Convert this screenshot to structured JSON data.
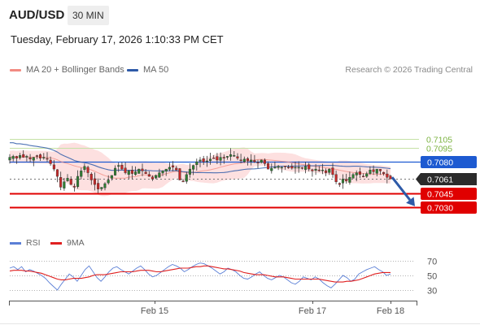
{
  "header": {
    "pair": "AUD/USD",
    "timeframe": "30 MIN"
  },
  "timestamp": "Tuesday, February 17, 2026 1:10:33 PM CET",
  "legend": {
    "ma20": {
      "label": "MA 20 + Bollinger Bands",
      "color": "#f28b82"
    },
    "ma50": {
      "label": "MA 50",
      "color": "#2e5aa8"
    }
  },
  "credit": "Research © 2026 Trading Central",
  "rsi_legend": {
    "rsi": {
      "label": "RSI",
      "color": "#5b7fd6"
    },
    "ma9": {
      "label": "9MA",
      "color": "#e02020"
    }
  },
  "colors": {
    "bull": "#2e7d32",
    "bear": "#c62828",
    "band": "#fde0e0",
    "support": "#e00000",
    "resistance": "#1d5ad1",
    "target": "#7cb342"
  },
  "chart_data": [
    {
      "type": "candlestick",
      "title": "AUD/USD",
      "x_ticks": [
        "Feb 15",
        "Feb 17",
        "Feb 18"
      ],
      "ylim": [
        0.7022,
        0.7132
      ],
      "levels": [
        {
          "value": 0.7105,
          "label": "0.7105",
          "kind": "target"
        },
        {
          "value": 0.7095,
          "label": "0.7095",
          "kind": "target"
        },
        {
          "value": 0.708,
          "label": "0.7080",
          "kind": "resistance"
        },
        {
          "value": 0.7061,
          "label": "0.7061",
          "kind": "last"
        },
        {
          "value": 0.7045,
          "label": "0.7045",
          "kind": "support"
        },
        {
          "value": 0.703,
          "label": "0.7030",
          "kind": "support"
        }
      ],
      "last_price": 0.7061,
      "projection": {
        "from": 0.7063,
        "to": 0.7031
      },
      "close_series": [
        0.7085,
        0.7086,
        0.7084,
        0.7087,
        0.7085,
        0.7086,
        0.7083,
        0.7085,
        0.7086,
        0.7084,
        0.7085,
        0.7083,
        0.7078,
        0.7072,
        0.7064,
        0.7052,
        0.7058,
        0.7062,
        0.7055,
        0.7052,
        0.7064,
        0.707,
        0.7075,
        0.7068,
        0.706,
        0.7055,
        0.705,
        0.7052,
        0.7056,
        0.706,
        0.7065,
        0.7073,
        0.7076,
        0.7072,
        0.7068,
        0.707,
        0.7067,
        0.7069,
        0.7072,
        0.707,
        0.7067,
        0.7064,
        0.7061,
        0.7065,
        0.7068,
        0.707,
        0.7072,
        0.7074,
        0.7074,
        0.7071,
        0.706,
        0.7058,
        0.7066,
        0.7072,
        0.7076,
        0.708,
        0.7082,
        0.708,
        0.7081,
        0.7083,
        0.7084,
        0.7082,
        0.7085,
        0.7084,
        0.7086,
        0.7088,
        0.7087,
        0.7084,
        0.7082,
        0.7083,
        0.7081,
        0.7082,
        0.708,
        0.7079,
        0.7082,
        0.7078,
        0.7072,
        0.7073,
        0.7074,
        0.7075,
        0.7074,
        0.7075,
        0.7074,
        0.7073,
        0.7074,
        0.7074,
        0.7073,
        0.7075,
        0.7072,
        0.707,
        0.7072,
        0.707,
        0.7071,
        0.7068,
        0.7072,
        0.7066,
        0.7058,
        0.7055,
        0.7061,
        0.7059,
        0.7063,
        0.7066,
        0.7068,
        0.7066,
        0.7064,
        0.7067,
        0.7071,
        0.7069,
        0.7072,
        0.707,
        0.7067,
        0.7063,
        0.7061
      ]
    },
    {
      "type": "line",
      "title": "RSI",
      "yticks": [
        70,
        50,
        30
      ],
      "ylim": [
        20,
        80
      ],
      "series": [
        {
          "name": "RSI",
          "values": [
            60,
            62,
            58,
            62,
            55,
            58,
            56,
            53,
            50,
            46,
            40,
            35,
            30,
            38,
            45,
            52,
            48,
            42,
            50,
            58,
            63,
            55,
            47,
            42,
            48,
            55,
            60,
            62,
            58,
            55,
            52,
            56,
            60,
            63,
            58,
            52,
            48,
            50,
            54,
            58,
            62,
            65,
            63,
            60,
            55,
            58,
            62,
            65,
            67,
            66,
            63,
            60,
            56,
            52,
            55,
            60,
            58,
            55,
            50,
            46,
            45,
            48,
            52,
            55,
            50,
            46,
            44,
            47,
            50,
            48,
            44,
            40,
            38,
            42,
            48,
            46,
            44,
            48,
            45,
            40,
            36,
            33,
            38,
            44,
            50,
            47,
            42,
            45,
            52,
            55,
            58,
            60,
            62,
            58,
            55,
            50,
            52
          ]
        },
        {
          "name": "9MA",
          "values": [
            56,
            57,
            57,
            57,
            56,
            56,
            55,
            54,
            53,
            51,
            49,
            47,
            45,
            44,
            44,
            45,
            46,
            46,
            46,
            47,
            48,
            50,
            51,
            51,
            51,
            52,
            53,
            54,
            55,
            55,
            55,
            55,
            56,
            57,
            57,
            57,
            56,
            55,
            55,
            56,
            57,
            58,
            59,
            60,
            60,
            60,
            61,
            62,
            62,
            63,
            63,
            62,
            61,
            60,
            59,
            59,
            58,
            57,
            56,
            54,
            53,
            52,
            51,
            51,
            51,
            50,
            49,
            48,
            48,
            48,
            47,
            46,
            45,
            45,
            45,
            45,
            45,
            45,
            45,
            44,
            43,
            42,
            41,
            41,
            41,
            42,
            42,
            43,
            44,
            46,
            48,
            50,
            52,
            53,
            54,
            54,
            54
          ]
        }
      ]
    }
  ]
}
